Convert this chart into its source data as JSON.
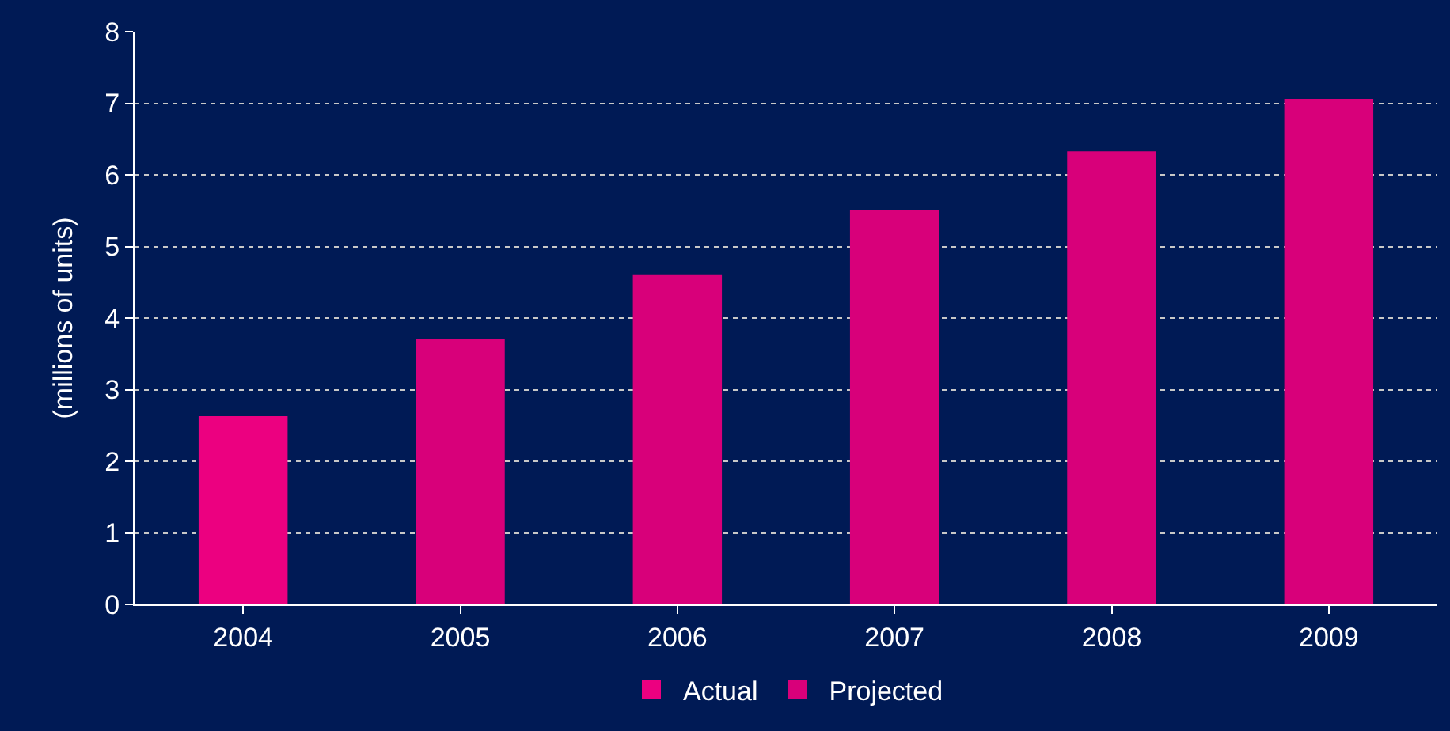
{
  "chart_data": {
    "type": "bar",
    "ylabel": "(millions of units)",
    "categories": [
      "2004",
      "2005",
      "2006",
      "2007",
      "2008",
      "2009"
    ],
    "series": [
      {
        "name": "Actual",
        "color": "#ec0080",
        "values": [
          2.63,
          null,
          null,
          null,
          null,
          null
        ]
      },
      {
        "name": "Projected",
        "color": "#d8007a",
        "values": [
          null,
          3.71,
          4.61,
          5.51,
          6.33,
          7.06
        ]
      }
    ],
    "ylim": [
      0,
      8
    ],
    "yticks": [
      0,
      1,
      2,
      3,
      4,
      5,
      6,
      7,
      8
    ],
    "grid": "y",
    "legend": "bottom"
  }
}
